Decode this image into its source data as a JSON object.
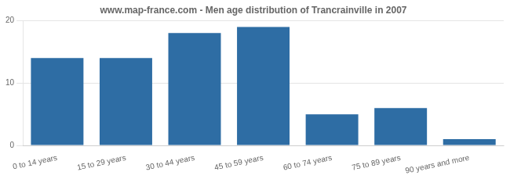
{
  "chart_data": {
    "type": "bar",
    "title": "www.map-france.com - Men age distribution of Trancrainville in 2007",
    "categories": [
      "0 to 14 years",
      "15 to 29 years",
      "30 to 44 years",
      "45 to 59 years",
      "60 to 74 years",
      "75 to 89 years",
      "90 years and more"
    ],
    "values": [
      14,
      14,
      18,
      19,
      5,
      6,
      1
    ],
    "color": "#2e6da4",
    "ylim": [
      0,
      20
    ],
    "yticks": [
      0,
      10,
      20
    ],
    "grid": true
  }
}
